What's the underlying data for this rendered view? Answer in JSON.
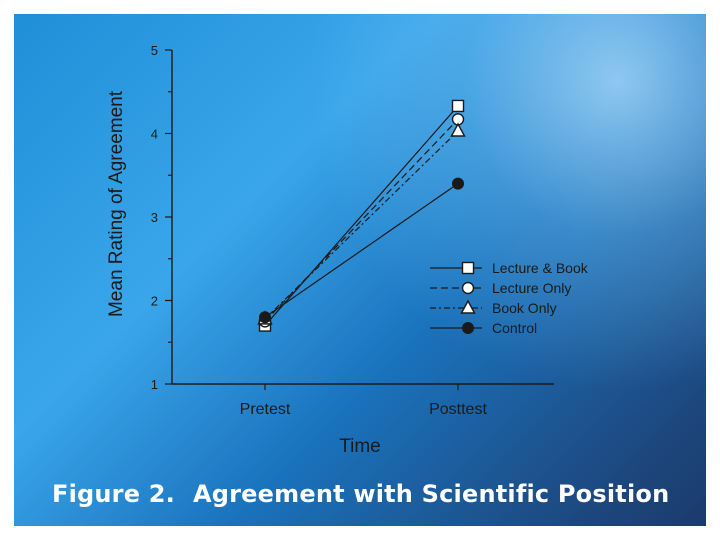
{
  "figure_label": "Figure 2.",
  "figure_title": "Agreement with Scientific Position",
  "colors": {
    "axis": "#1a1a1a",
    "slide_accent": "#2f9be4"
  },
  "chart_data": {
    "type": "line",
    "title": "",
    "xlabel": "Time",
    "ylabel": "Mean Rating of Agreement",
    "categories": [
      "Pretest",
      "Posttest"
    ],
    "ylim": [
      1,
      5
    ],
    "yticks": [
      "1",
      "2",
      "3",
      "4",
      "5"
    ],
    "grid": false,
    "legend_position": "lower-right",
    "series": [
      {
        "name": "Lecture & Book",
        "values": [
          1.7,
          4.33
        ],
        "marker": "square-open",
        "dash": "solid"
      },
      {
        "name": "Lecture Only",
        "values": [
          1.75,
          4.17
        ],
        "marker": "circle-open",
        "dash": "dashed"
      },
      {
        "name": "Book Only",
        "values": [
          1.78,
          4.03
        ],
        "marker": "triangle-open",
        "dash": "dashdot"
      },
      {
        "name": "Control",
        "values": [
          1.8,
          3.4
        ],
        "marker": "circle-filled",
        "dash": "solid"
      }
    ]
  }
}
